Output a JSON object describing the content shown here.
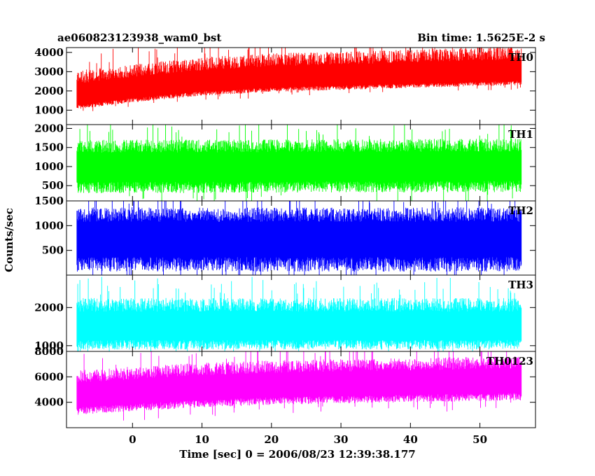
{
  "header": {
    "title": "ae060823123938_wam0_bst",
    "bin_time": "Bin time: 1.5625E-2 s"
  },
  "chart_data": {
    "type": "line",
    "title": "ae060823123938_wam0_bst",
    "xlabel": "Time [sec] 0 = 2006/08/23 12:39:38.177",
    "ylabel": "Counts/sec",
    "xlim": [
      -9.5,
      58
    ],
    "data_x_range": [
      -8,
      56
    ],
    "xticks": [
      0,
      10,
      20,
      30,
      40,
      50
    ],
    "grid": false,
    "series": [
      {
        "name": "TH0",
        "color": "#ff0000",
        "ylim": [
          250,
          4250
        ],
        "yticks": [
          1000,
          2000,
          3000,
          4000
        ],
        "trend": {
          "x": [
            -8,
            0,
            10,
            20,
            30,
            40,
            56
          ],
          "y": [
            1550,
            1900,
            2250,
            2450,
            2550,
            2650,
            2800
          ]
        },
        "band": [
          500,
          1500
        ]
      },
      {
        "name": "TH1",
        "color": "#00ff00",
        "ylim": [
          100,
          2100
        ],
        "yticks": [
          500,
          1000,
          1500,
          2000
        ],
        "trend": {
          "x": [
            -8,
            56
          ],
          "y": [
            950,
            980
          ]
        },
        "band": [
          650,
          750
        ]
      },
      {
        "name": "TH2",
        "color": "#0000ff",
        "ylim": [
          0,
          1500
        ],
        "yticks": [
          500,
          1000,
          1500
        ],
        "trend": {
          "x": [
            -8,
            56
          ],
          "y": [
            720,
            720
          ]
        },
        "band": [
          650,
          650
        ]
      },
      {
        "name": "TH3",
        "color": "#00ffff",
        "ylim": [
          850,
          2850
        ],
        "yticks": [
          1000,
          2000
        ],
        "trend": {
          "x": [
            -8,
            56
          ],
          "y": [
            1450,
            1450
          ]
        },
        "band": [
          550,
          800
        ]
      },
      {
        "name": "TH0123",
        "color": "#ff00ff",
        "ylim": [
          2000,
          8000
        ],
        "yticks": [
          4000,
          6000,
          8000
        ],
        "trend": {
          "x": [
            -8,
            0,
            10,
            20,
            30,
            40,
            56
          ],
          "y": [
            4300,
            4600,
            4900,
            5100,
            5200,
            5300,
            5450
          ]
        },
        "band": [
          1300,
          2200
        ]
      }
    ]
  }
}
